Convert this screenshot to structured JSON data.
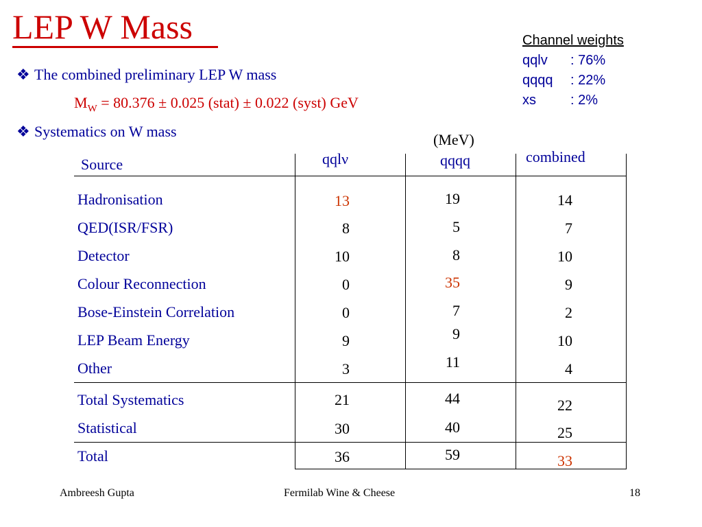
{
  "slide": {
    "title": "LEP W Mass",
    "bullet1": "The combined preliminary LEP W mass",
    "formula_symbol": "M",
    "formula_sub": "W",
    "formula_rest": " = 80.376 ± 0.025 (stat) ± 0.022 (syst) GeV",
    "bullet2": "Systematics on W mass",
    "bullet_glyph": "❖",
    "unit": "(MeV)"
  },
  "channel_weights": {
    "heading": "Channel weights",
    "rows": [
      {
        "name": "qqlv",
        "value": ": 76%"
      },
      {
        "name": "qqqq",
        "value": ": 22%"
      },
      {
        "name": "xs",
        "value": ": 2%"
      }
    ]
  },
  "table": {
    "headers": [
      "Source",
      "qqlν",
      "qqqq",
      "combined"
    ],
    "rows": [
      {
        "source": "Hadronisation",
        "qqlv": "13",
        "qqqq": "19",
        "combined": "14"
      },
      {
        "source": "QED(ISR/FSR)",
        "qqlv": "8",
        "qqqq": "5",
        "combined": "7"
      },
      {
        "source": "Detector",
        "qqlv": "10",
        "qqqq": "8",
        "combined": "10"
      },
      {
        "source": "Colour Reconnection",
        "qqlv": "0",
        "qqqq": "35",
        "combined": "9"
      },
      {
        "source": "Bose-Einstein Correlation",
        "qqlv": "0",
        "qqqq": "7",
        "combined": "2"
      },
      {
        "source": "LEP Beam Energy",
        "qqlv": "9",
        "qqqq": "9",
        "combined": "10"
      },
      {
        "source": "Other",
        "qqlv": "3",
        "qqqq": "11",
        "combined": "4"
      }
    ],
    "totals": [
      {
        "source": "Total Systematics",
        "qqlv": "21",
        "qqqq": "44",
        "combined": "22"
      },
      {
        "source": "Statistical",
        "qqlv": "30",
        "qqqq": "40",
        "combined": "25"
      }
    ],
    "total": {
      "source": "Total",
      "qqlv": "36",
      "qqqq": "59",
      "combined": "33"
    }
  },
  "footer": {
    "author": "Ambreesh Gupta",
    "event": "Fermilab Wine & Cheese",
    "page": "18"
  },
  "colors": {
    "title": "#cc0000",
    "text_blue": "#000099",
    "highlight": "#cc3300"
  }
}
